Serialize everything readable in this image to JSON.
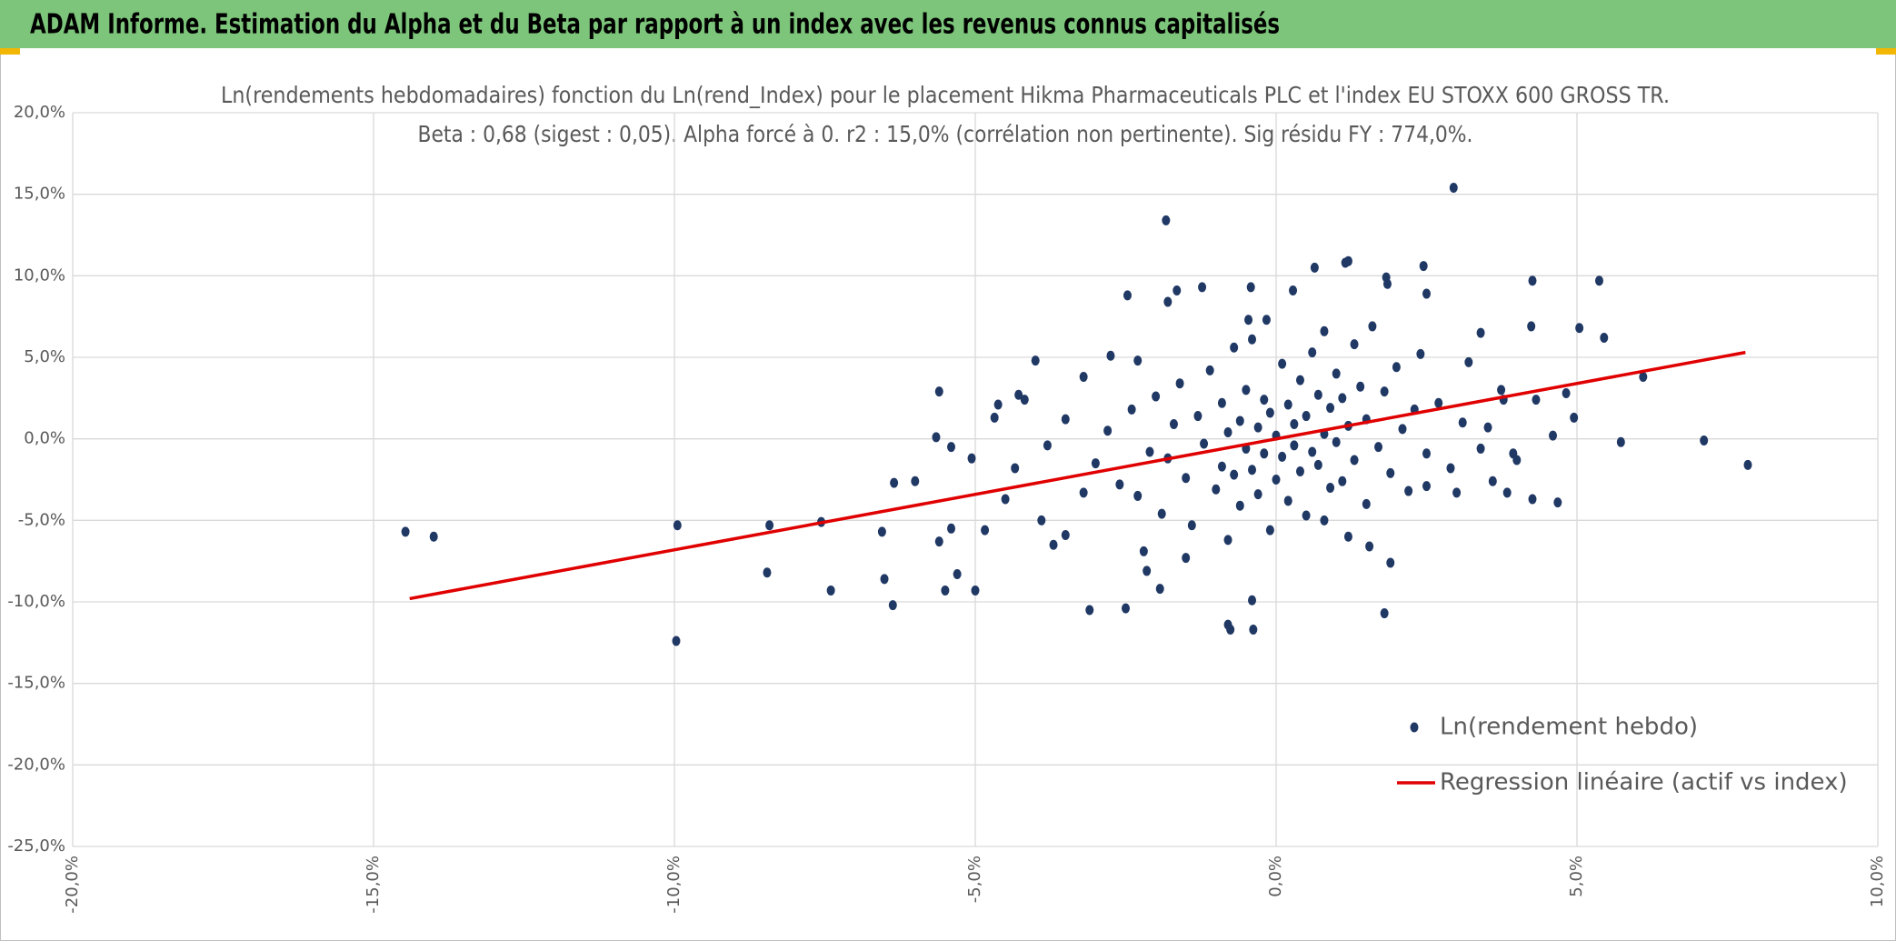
{
  "header": {
    "title": "ADAM Informe. Estimation du Alpha et du Beta par rapport à un index avec les revenus connus capitalisés"
  },
  "chart_data": {
    "type": "scatter",
    "title": "Ln(rendements hebdomadaires) fonction du Ln(rend_Index) pour le placement Hikma Pharmaceuticals PLC et l'index EU STOXX 600 GROSS TR.",
    "subtitle": "Beta : 0,68 (sigest : 0,05). Alpha forcé à 0. r2 : 15,0% (corrélation non pertinente). Sig résidu FY : 774,0%.",
    "xlim": [
      -20,
      10
    ],
    "xticks": [
      {
        "value": -20,
        "label": "-20,0%"
      },
      {
        "value": -15,
        "label": "-15,0%"
      },
      {
        "value": -10,
        "label": "-10,0%"
      },
      {
        "value": -5,
        "label": "-5,0%"
      },
      {
        "value": 0,
        "label": "0,0%"
      },
      {
        "value": 5,
        "label": "5,0%"
      },
      {
        "value": 10,
        "label": "10,0%"
      }
    ],
    "ylim": [
      -25,
      20
    ],
    "yticks": [
      {
        "value": -25,
        "label": "-25,0%"
      },
      {
        "value": -20,
        "label": "-20,0%"
      },
      {
        "value": -15,
        "label": "-15,0%"
      },
      {
        "value": -10,
        "label": "-10,0%"
      },
      {
        "value": -5,
        "label": "-5,0%"
      },
      {
        "value": 0,
        "label": "0,0%"
      },
      {
        "value": 5,
        "label": "5,0%"
      },
      {
        "value": 10,
        "label": "10,0%"
      },
      {
        "value": 15,
        "label": "15,0%"
      },
      {
        "value": 20,
        "label": "20,0%"
      }
    ],
    "grid": true,
    "legend": "lower right",
    "series": [
      {
        "name": "Ln(rendement hebdo)",
        "type": "scatter",
        "color": "#203864",
        "x": [
          -14.47,
          -14.0,
          -9.95,
          -9.97,
          -8.42,
          -8.46,
          -7.56,
          -7.4,
          -6.55,
          -6.51,
          -6.37,
          -6.35,
          -6.0,
          -5.65,
          -5.6,
          -5.5,
          -5.6,
          -5.4,
          -5.3,
          -5.06,
          -5.0,
          -4.84,
          -5.4,
          -4.68,
          -4.62,
          -4.34,
          -4.0,
          -4.28,
          -4.18,
          -3.9,
          -3.7,
          -3.5,
          -3.1,
          -2.5,
          -2.47,
          -3.2,
          -2.75,
          -2.3,
          -1.8,
          -1.65,
          -1.93,
          -1.83,
          -2.15,
          -1.23,
          -0.42,
          -0.46,
          -0.16,
          -0.8,
          -0.76,
          -0.38,
          -0.4,
          0.28,
          0.64,
          1.15,
          1.2,
          1.83,
          1.85,
          2.45,
          2.5,
          2.95,
          1.8,
          1.9,
          1.55,
          2.5,
          3.0,
          3.4,
          3.74,
          4.26,
          4.24,
          4.82,
          5.04,
          5.37,
          5.45,
          6.1,
          5.73,
          7.11,
          7.84,
          4.68,
          4.26,
          3.84,
          3.6,
          3.94,
          4.0,
          4.6,
          4.95,
          3.78,
          4.32,
          3.52,
          -3.0,
          -2.8,
          -2.6,
          -2.4,
          -2.3,
          -2.1,
          -2.0,
          -1.9,
          -1.8,
          -1.7,
          -1.6,
          -1.5,
          -1.4,
          -1.3,
          -1.2,
          -1.1,
          -1.0,
          -0.9,
          -0.9,
          -0.8,
          -0.8,
          -0.7,
          -0.7,
          -0.6,
          -0.6,
          -0.5,
          -0.5,
          -0.4,
          -0.4,
          -0.3,
          -0.3,
          -0.2,
          -0.2,
          -0.1,
          -0.1,
          0,
          0,
          0.1,
          0.1,
          0.2,
          0.2,
          0.3,
          0.3,
          0.4,
          0.4,
          0.5,
          0.5,
          0.6,
          0.6,
          0.7,
          0.7,
          0.8,
          0.8,
          0.9,
          0.9,
          1.0,
          1.0,
          1.1,
          1.1,
          1.2,
          1.3,
          1.3,
          1.4,
          1.5,
          1.5,
          1.6,
          1.7,
          1.8,
          1.9,
          2.0,
          2.1,
          2.2,
          2.3,
          2.4,
          2.5,
          2.7,
          2.9,
          3.1,
          3.2,
          3.4,
          -3.5,
          -3.8,
          -3.2,
          -4.5,
          -2.2,
          -1.5,
          0.8,
          1.2
        ],
        "values": [
          -5.7,
          -6.0,
          -5.3,
          -12.4,
          -5.3,
          -8.2,
          -5.1,
          -9.3,
          -5.7,
          -8.6,
          -10.2,
          -2.7,
          -2.6,
          0.1,
          2.9,
          -9.3,
          -6.3,
          -5.5,
          -8.3,
          -1.2,
          -9.3,
          -5.6,
          -0.5,
          1.3,
          2.1,
          -1.8,
          4.8,
          2.7,
          2.4,
          -5.0,
          -6.5,
          -5.9,
          -10.5,
          -10.4,
          8.8,
          3.8,
          5.1,
          4.8,
          8.4,
          9.1,
          -9.2,
          13.4,
          -8.1,
          9.3,
          9.3,
          7.3,
          7.3,
          -11.4,
          -11.7,
          -11.7,
          -9.9,
          9.1,
          10.5,
          10.8,
          10.9,
          9.9,
          9.5,
          10.6,
          8.9,
          15.4,
          -10.7,
          -7.6,
          -6.6,
          -2.9,
          -3.3,
          6.5,
          3.0,
          9.7,
          6.9,
          2.8,
          6.8,
          9.7,
          6.2,
          3.8,
          -0.2,
          -0.1,
          -1.6,
          -3.9,
          -3.7,
          -3.3,
          -2.6,
          -0.9,
          -1.3,
          0.2,
          1.3,
          2.4,
          2.4,
          0.7,
          -1.5,
          0.5,
          -2.8,
          1.8,
          -3.5,
          -0.8,
          2.6,
          -4.6,
          -1.2,
          0.9,
          3.4,
          -2.4,
          -5.3,
          1.4,
          -0.3,
          4.2,
          -3.1,
          -1.7,
          2.2,
          0.4,
          -6.2,
          5.6,
          -2.2,
          1.1,
          -4.1,
          -0.6,
          3.0,
          -1.9,
          6.1,
          0.7,
          -3.4,
          2.4,
          -0.9,
          -5.6,
          1.6,
          -2.5,
          0.2,
          4.6,
          -1.1,
          2.1,
          -3.8,
          0.9,
          -0.4,
          3.6,
          -2.0,
          1.4,
          -4.7,
          5.3,
          -0.8,
          2.7,
          -1.6,
          0.3,
          6.6,
          -3.0,
          1.9,
          4.0,
          -0.2,
          2.5,
          -2.6,
          0.8,
          5.8,
          -1.3,
          3.2,
          -4.0,
          1.2,
          6.9,
          -0.5,
          2.9,
          -2.1,
          4.4,
          0.6,
          -3.2,
          1.8,
          5.2,
          -0.9,
          2.2,
          -1.8,
          1.0,
          4.7,
          -0.6,
          1.2,
          -0.4,
          -3.3,
          -3.7,
          -6.9,
          -7.3,
          -5.0,
          -6.0
        ]
      },
      {
        "name": "Regression linéaire (actif vs index)",
        "type": "line",
        "color": "#e00000",
        "x": [
          -14.4,
          7.8
        ],
        "values": [
          -9.8,
          5.3
        ]
      }
    ]
  }
}
